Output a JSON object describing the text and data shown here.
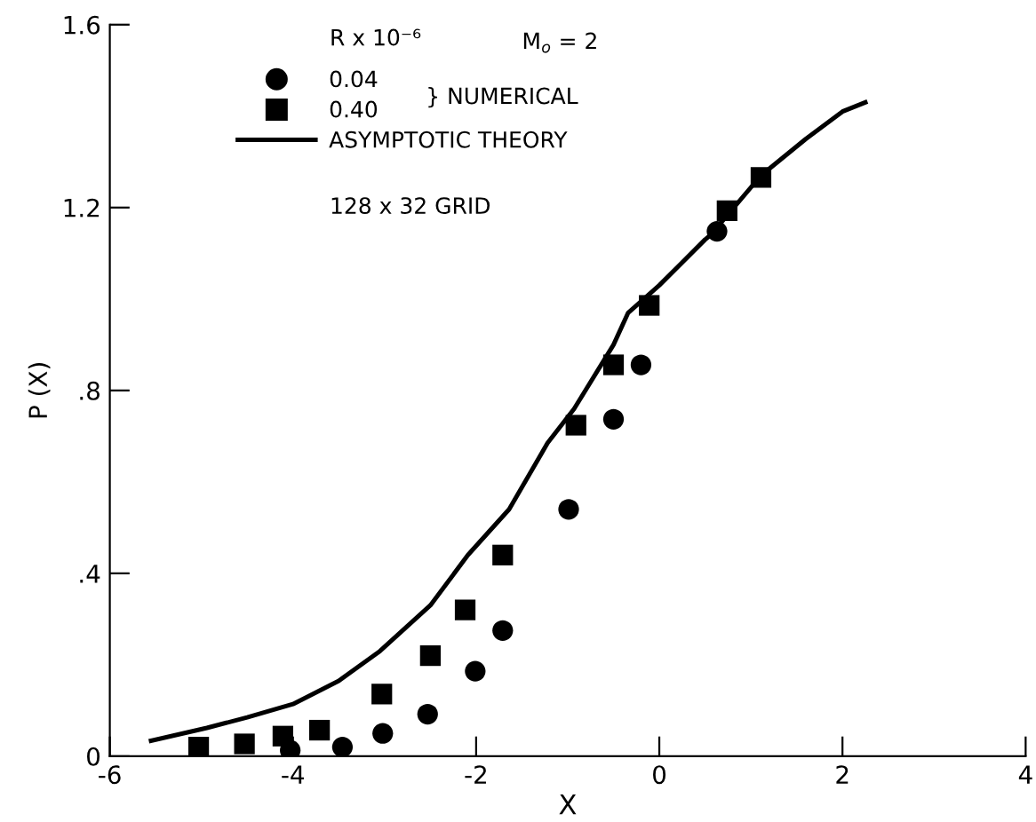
{
  "chart_data": {
    "type": "scatter",
    "xlabel": "X",
    "ylabel": "P (X)",
    "legend_title": "R x 10⁻⁶",
    "legend": "top left",
    "grid": false,
    "xlim": [
      -6,
      4
    ],
    "xticks": [
      -6,
      -4,
      -2,
      0,
      2,
      4
    ],
    "ylim": [
      0,
      1.6
    ],
    "yticks": [
      0,
      {
        "value": 0.4,
        "label": ".4"
      },
      {
        "value": 0.8,
        "label": ".8"
      },
      1.2,
      1.6
    ],
    "annotations": [
      "M$_{o}$ = 2",
      "} NUMERICAL",
      "128 x 32 GRID"
    ],
    "series": [
      {
        "name": "0.04",
        "marker": "circle",
        "color": "#000000",
        "x": [
          -4.03,
          -3.46,
          -3.02,
          -2.53,
          -2.01,
          -1.71,
          -0.99,
          -0.5,
          -0.2,
          0.63
        ],
        "values": [
          0.013,
          0.02,
          0.05,
          0.092,
          0.186,
          0.275,
          0.54,
          0.737,
          0.856,
          1.148
        ]
      },
      {
        "name": "0.40",
        "marker": "square",
        "color": "#000000",
        "x": [
          -5.03,
          -4.53,
          -4.11,
          -3.71,
          -3.03,
          -2.5,
          -2.12,
          -1.71,
          -0.91,
          -0.5,
          -0.11,
          0.74,
          1.11
        ],
        "values": [
          0.02,
          0.027,
          0.044,
          0.057,
          0.136,
          0.22,
          0.32,
          0.44,
          0.724,
          0.856,
          0.986,
          1.193,
          1.266
        ]
      },
      {
        "name": "ASYMPTOTIC THEORY",
        "type": "line",
        "marker": "none",
        "line_style": "solid",
        "color": "#000000",
        "x": [
          -5.55,
          -4.94,
          -4.5,
          -4.0,
          -3.5,
          -3.05,
          -2.5,
          -2.09,
          -1.64,
          -1.22,
          -0.93,
          -0.5,
          -0.34,
          0.0,
          0.5,
          0.56,
          1.11,
          1.6,
          2.0,
          2.25
        ],
        "values": [
          0.034,
          0.062,
          0.085,
          0.114,
          0.165,
          0.23,
          0.33,
          0.44,
          0.54,
          0.685,
          0.76,
          0.9,
          0.97,
          1.03,
          1.13,
          1.14,
          1.27,
          1.35,
          1.41,
          1.43
        ]
      }
    ]
  }
}
